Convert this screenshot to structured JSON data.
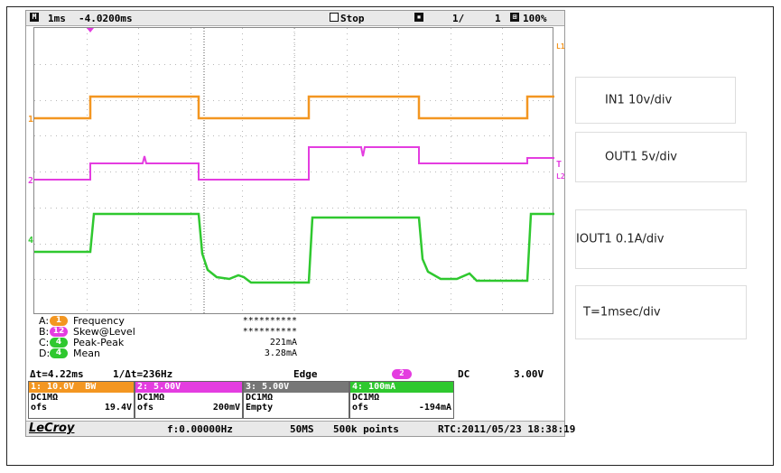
{
  "topbar": {
    "timebase": "1ms",
    "delay": "-4.0200ms",
    "run_state": "Stop",
    "sweeps_a": "1/",
    "sweeps_b": "1",
    "zoom": "100%"
  },
  "channel_markers": {
    "ch1": "1",
    "ch2": "2",
    "ch4": "4",
    "l1": "L1",
    "l2": "L2",
    "t_right": "T"
  },
  "measurements": [
    {
      "key": "A:",
      "channel": "1",
      "name": "Frequency",
      "value": "**********",
      "color": "#f39621"
    },
    {
      "key": "B:",
      "channel": "12",
      "name": "Skew@Level",
      "value": "**********",
      "color": "#e43de0"
    },
    {
      "key": "C:",
      "channel": "4",
      "name": "Peak-Peak",
      "value": "221mA",
      "color": "#2fc82f"
    },
    {
      "key": "D:",
      "channel": "4",
      "name": "Mean",
      "value": "3.28mA",
      "color": "#2fc82f"
    }
  ],
  "trigger": {
    "delta_t": "Δt=4.22ms",
    "inv_delta_t": "1/Δt=236Hz",
    "mode": "Edge",
    "source": "2",
    "coupling": "DC",
    "level": "3.00V"
  },
  "channels": [
    {
      "header": "1: 10.0V  BW",
      "coupling": "DC1MΩ",
      "ofs_label": "ofs",
      "ofs_value": "19.4V",
      "color": "#f39621"
    },
    {
      "header": "2: 5.00V",
      "coupling": "DC1MΩ",
      "ofs_label": "ofs",
      "ofs_value": "200mV",
      "color": "#e43de0"
    },
    {
      "header": "3: 5.00V",
      "coupling": "DC1MΩ",
      "ofs_label": "Empty",
      "ofs_value": "",
      "color": "#777777"
    },
    {
      "header": "4: 100mA",
      "coupling": "DC1MΩ",
      "ofs_label": "ofs",
      "ofs_value": "-194mA",
      "color": "#2fc82f"
    }
  ],
  "bottombar": {
    "brand": "LeCroy",
    "frequency": "f:0.00000Hz",
    "sample_rate": "50MS",
    "points": "500k points",
    "rtc": "RTC:2011/05/23 18:38:19"
  },
  "side_labels": {
    "in1": "IN1 10v/div",
    "out1": "OUT1 5v/div",
    "iout1": "IOUT1 0.1A/div",
    "time": "T=1msec/div"
  },
  "colors": {
    "ch1": "#f39621",
    "ch2": "#e43de0",
    "ch4": "#2fc82f"
  }
}
